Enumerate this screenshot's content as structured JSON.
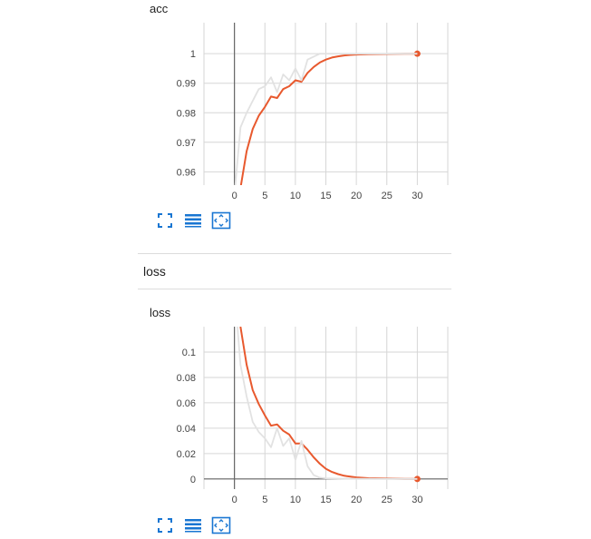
{
  "section": {
    "title": "loss"
  },
  "toolbar": {
    "icons": [
      "fullscreen-icon",
      "data-list-icon",
      "fit-domain-icon"
    ]
  },
  "colors": {
    "main": "#e8592e",
    "raw": "#e2e2e2",
    "grid": "#d6d6d6",
    "axis": "#666666"
  },
  "chart_data": [
    {
      "type": "line",
      "title": "acc",
      "x_ticks": [
        0,
        5,
        10,
        15,
        20,
        25,
        30
      ],
      "y_ticks": [
        0.96,
        0.97,
        0.98,
        0.99,
        1
      ],
      "xlim": [
        -5,
        35
      ],
      "ylim": [
        0.9555,
        1.0105
      ],
      "grid": true,
      "series": [
        {
          "role": "smoothed",
          "x": [
            0,
            1,
            2,
            3,
            4,
            5,
            6,
            7,
            8,
            9,
            10,
            11,
            12,
            13,
            14,
            15,
            16,
            17,
            18,
            19,
            20,
            22,
            25,
            28,
            30
          ],
          "y": [
            0.949,
            0.9545,
            0.967,
            0.9745,
            0.979,
            0.982,
            0.9855,
            0.985,
            0.988,
            0.989,
            0.991,
            0.9905,
            0.9935,
            0.9955,
            0.997,
            0.998,
            0.9987,
            0.9991,
            0.9994,
            0.9996,
            0.9997,
            0.9998,
            0.9999,
            1,
            1
          ]
        },
        {
          "role": "raw",
          "x": [
            0,
            1,
            2,
            3,
            4,
            5,
            6,
            7,
            8,
            9,
            10,
            11,
            12,
            13,
            14,
            15,
            16,
            18,
            20,
            25,
            30
          ],
          "y": [
            0.952,
            0.975,
            0.98,
            0.984,
            0.988,
            0.989,
            0.992,
            0.987,
            0.993,
            0.991,
            0.995,
            0.991,
            0.998,
            0.999,
            1,
            1,
            1,
            1,
            1,
            1,
            1
          ]
        }
      ]
    },
    {
      "type": "line",
      "title": "loss",
      "x_ticks": [
        0,
        5,
        10,
        15,
        20,
        25,
        30
      ],
      "y_ticks": [
        0,
        0.02,
        0.04,
        0.06,
        0.08,
        0.1
      ],
      "xlim": [
        -5,
        35
      ],
      "ylim": [
        -0.008,
        0.12
      ],
      "grid": true,
      "series": [
        {
          "role": "smoothed",
          "x": [
            1,
            2,
            3,
            4,
            5,
            6,
            7,
            8,
            9,
            10,
            11,
            12,
            13,
            14,
            15,
            16,
            17,
            18,
            20,
            22,
            25,
            28,
            30
          ],
          "y": [
            0.12,
            0.09,
            0.07,
            0.059,
            0.05,
            0.042,
            0.043,
            0.038,
            0.035,
            0.028,
            0.028,
            0.023,
            0.017,
            0.012,
            0.008,
            0.0055,
            0.0038,
            0.0025,
            0.0012,
            0.0006,
            0.0003,
            0.0001,
            0
          ],
          "last_point": [
            30,
            0
          ]
        },
        {
          "role": "raw",
          "x": [
            0,
            1,
            2,
            3,
            4,
            5,
            6,
            7,
            8,
            9,
            10,
            11,
            12,
            13,
            14,
            15,
            17,
            20,
            25,
            30
          ],
          "y": [
            0.15,
            0.09,
            0.065,
            0.045,
            0.037,
            0.032,
            0.025,
            0.04,
            0.026,
            0.032,
            0.015,
            0.03,
            0.01,
            0.003,
            0.001,
            0.0005,
            0.0002,
            0.0001,
            0,
            0
          ]
        }
      ]
    }
  ]
}
